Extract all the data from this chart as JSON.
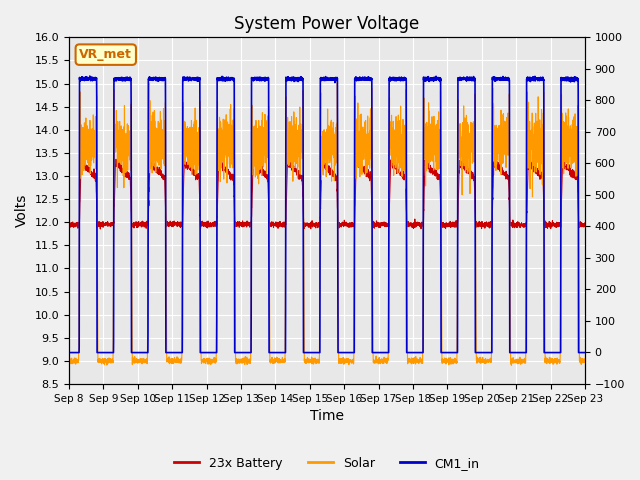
{
  "title": "System Power Voltage",
  "xlabel": "Time",
  "ylabel_left": "Volts",
  "ylim_left": [
    8.5,
    16.0
  ],
  "ylim_right": [
    -100,
    1000
  ],
  "yticks_left": [
    8.5,
    9.0,
    9.5,
    10.0,
    10.5,
    11.0,
    11.5,
    12.0,
    12.5,
    13.0,
    13.5,
    14.0,
    14.5,
    15.0,
    15.5,
    16.0
  ],
  "yticks_right": [
    -100,
    0,
    100,
    200,
    300,
    400,
    500,
    600,
    700,
    800,
    900,
    1000
  ],
  "xtick_positions": [
    0,
    1,
    2,
    3,
    4,
    5,
    6,
    7,
    8,
    9,
    10,
    11,
    12,
    13,
    14,
    15
  ],
  "xtick_labels": [
    "Sep 8",
    "Sep 9",
    "Sep 10",
    "Sep 11",
    "Sep 12",
    "Sep 13",
    "Sep 14",
    "Sep 15",
    "Sep 16",
    "Sep 17",
    "Sep 18",
    "Sep 19",
    "Sep 20",
    "Sep 21",
    "Sep 22",
    "Sep 23"
  ],
  "legend_entries": [
    "23x Battery",
    "Solar",
    "CM1_in"
  ],
  "legend_colors": [
    "#cc0000",
    "#ff9900",
    "#0000cc"
  ],
  "annotation_text": "VR_met",
  "annotation_color": "#cc6600",
  "annotation_bg": "#ffffcc",
  "background_color": "#e8e8e8",
  "fig_background": "#f0f0f0",
  "grid_color": "#ffffff",
  "num_days": 15,
  "xlim": [
    0,
    15
  ]
}
